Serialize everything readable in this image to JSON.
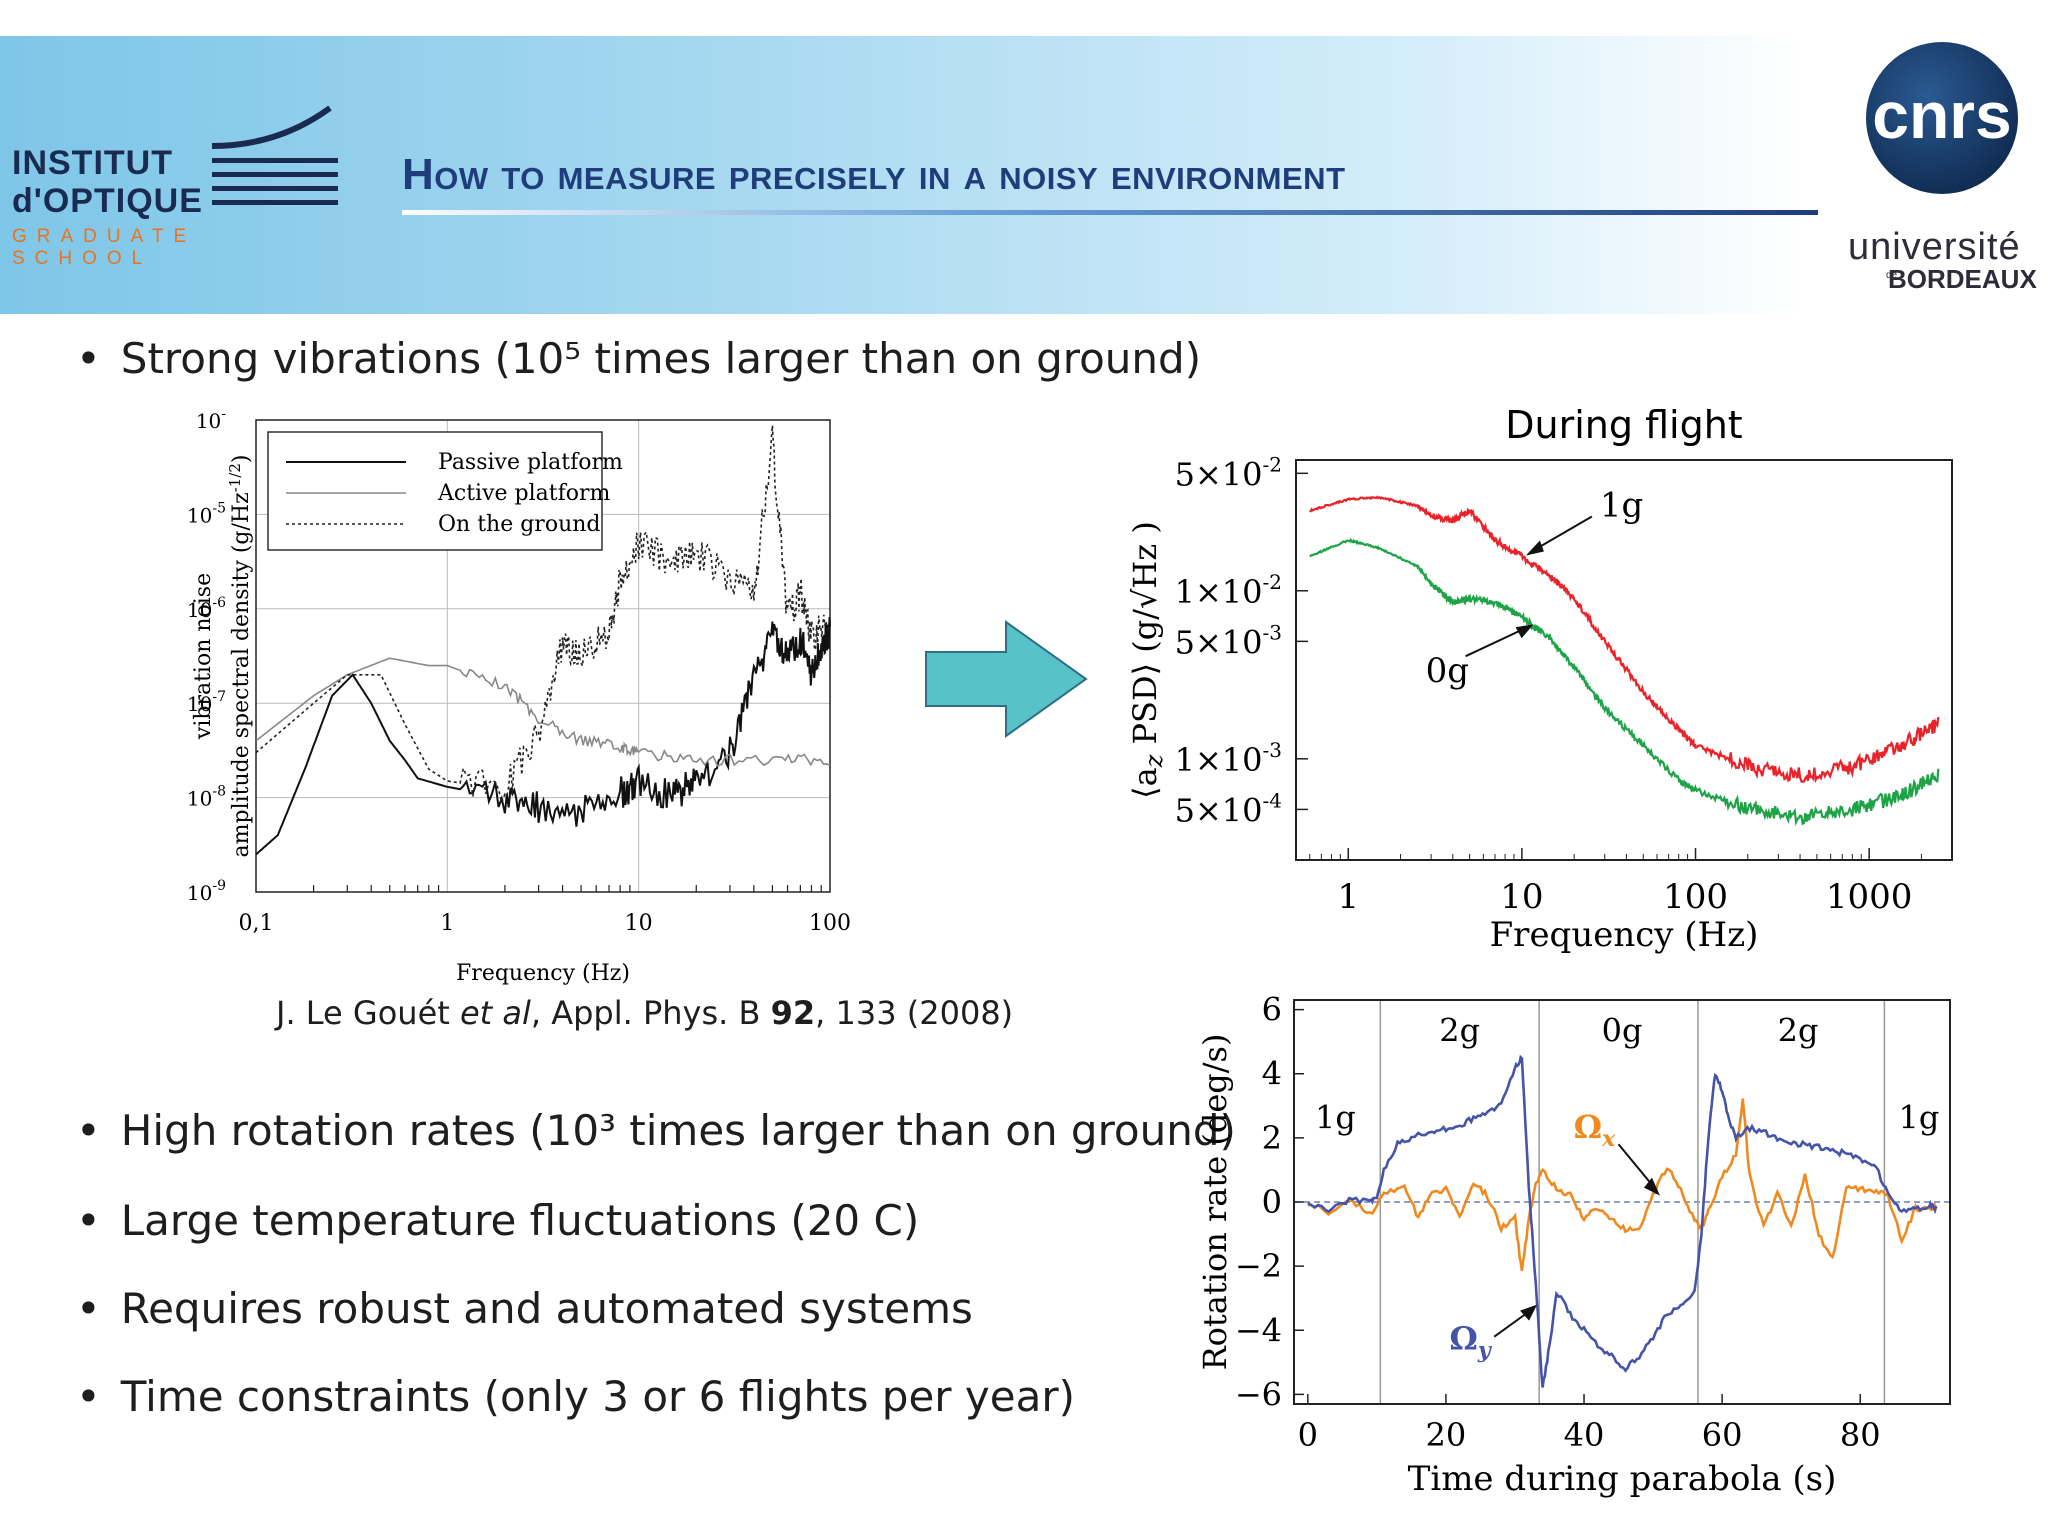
{
  "header": {
    "title": "How to measure precisely in a noisy environment",
    "logo_institut": {
      "line1": "INSTITUT",
      "line2": "d'OPTIQUE",
      "line3": "GRADUATE SCHOOL"
    },
    "logo_cnrs": "cnrs",
    "logo_universite": {
      "line1": "université",
      "line2": "BORDEAUX",
      "prefix": "de"
    }
  },
  "bullets": [
    {
      "text": "Strong vibrations (10⁵ times larger than on ground)"
    },
    {
      "text": "High rotation rates (10³ times larger than on ground)"
    },
    {
      "text": "Large temperature fluctuations (20 C)"
    },
    {
      "text": "Requires robust and automated systems"
    },
    {
      "text": "Time constraints (only 3 or 6 flights per year)"
    }
  ],
  "citation": {
    "authors": "J. Le Gouét ",
    "etal": "et al",
    "journal": ", Appl. Phys. B ",
    "volume": "92",
    "rest": ", 133 (2008)"
  },
  "colors": {
    "arrow": "#57c2c8",
    "red": "#e8232a",
    "green": "#1ea346",
    "orange": "#f08a1e",
    "blue": "#4654a8",
    "title": "#1f3d7a"
  },
  "chart_data": [
    {
      "type": "line",
      "xscale": "log",
      "yscale": "log",
      "xlim": [
        0.1,
        100
      ],
      "ylim": [
        1e-09,
        0.0001
      ],
      "xlabel": "Frequency (Hz)",
      "ylabel": "amplitude spectral density (g/Hz",
      "ylabel_sup": "-1/2",
      "ylabel_close": ")",
      "ylabel2": "vibration noise",
      "xticks": [
        {
          "v": 0.1,
          "label": "0,1"
        },
        {
          "v": 1,
          "label": "1"
        },
        {
          "v": 10,
          "label": "10"
        },
        {
          "v": 100,
          "label": "100"
        }
      ],
      "yticks": [
        {
          "v": -9,
          "label": "-9"
        },
        {
          "v": -8,
          "label": "-8"
        },
        {
          "v": -7,
          "label": "-7"
        },
        {
          "v": -6,
          "label": "-6"
        },
        {
          "v": -5,
          "label": "-5"
        },
        {
          "v": -4,
          "label": "-"
        }
      ],
      "ytick_base": "10",
      "legend_position": "top-left",
      "series": [
        {
          "name": "Passive platform",
          "style": "solid",
          "x": [
            0.1,
            0.13,
            0.18,
            0.25,
            0.32,
            0.4,
            0.5,
            0.6,
            0.7,
            1,
            2,
            3,
            5,
            8,
            10,
            15,
            20,
            30,
            40,
            50,
            60,
            70,
            80,
            90,
            100
          ],
          "y": [
            2.5e-09,
            4e-09,
            2e-08,
            1.2e-07,
            2e-07,
            1e-07,
            4e-08,
            2.5e-08,
            1.6e-08,
            1.3e-08,
            1e-08,
            8e-09,
            7e-09,
            1.1e-08,
            1.5e-08,
            1e-08,
            1.5e-08,
            3e-08,
            2e-07,
            5e-07,
            3e-07,
            5e-07,
            2e-07,
            4e-07,
            6e-07
          ]
        },
        {
          "name": "Active platform",
          "style": "thin",
          "x": [
            0.1,
            0.2,
            0.3,
            0.5,
            0.8,
            1,
            2,
            3,
            5,
            8,
            10,
            20,
            50,
            100
          ],
          "y": [
            4e-08,
            1.2e-07,
            2e-07,
            3e-07,
            2.5e-07,
            2.5e-07,
            1.5e-07,
            7e-08,
            4e-08,
            3.5e-08,
            3e-08,
            2.5e-08,
            2.5e-08,
            2.5e-08
          ]
        },
        {
          "name": "On the ground",
          "style": "dotted",
          "x": [
            0.1,
            0.2,
            0.3,
            0.45,
            0.6,
            0.8,
            1,
            2,
            3,
            4,
            5,
            7,
            8,
            10,
            15,
            20,
            30,
            40,
            50,
            60,
            70,
            80,
            100
          ],
          "y": [
            3e-08,
            1e-07,
            2e-07,
            2e-07,
            6e-08,
            2e-08,
            1.5e-08,
            1.2e-08,
            5e-08,
            4e-07,
            3e-07,
            6e-07,
            2e-06,
            5e-06,
            3e-06,
            4e-06,
            2e-06,
            1.5e-06,
            6e-05,
            8e-07,
            1.5e-06,
            5e-07,
            8e-07
          ]
        }
      ]
    },
    {
      "type": "line",
      "title": "During flight",
      "xscale": "log",
      "yscale": "log",
      "xlim": [
        0.5,
        3000
      ],
      "ylim": [
        0.00025,
        0.06
      ],
      "xlabel": "Frequency (Hz)",
      "ylabel": "⟨a",
      "ylabel_sub": "z",
      "ylabel_rest": " PSD⟩ (g/√Hz )",
      "xticks": [
        {
          "v": 1,
          "label": "1"
        },
        {
          "v": 10,
          "label": "10"
        },
        {
          "v": 100,
          "label": "100"
        },
        {
          "v": 1000,
          "label": "1000"
        }
      ],
      "yticks": [
        {
          "v": 0.05,
          "label": "5×10",
          "exp": "-2"
        },
        {
          "v": 0.01,
          "label": "1×10",
          "exp": "-2"
        },
        {
          "v": 0.005,
          "label": "5×10",
          "exp": "-3"
        },
        {
          "v": 0.001,
          "label": "1×10",
          "exp": "-3"
        },
        {
          "v": 0.0005,
          "label": "5×10",
          "exp": "-4"
        }
      ],
      "series": [
        {
          "name": "1g",
          "color": "#e8232a",
          "x": [
            0.6,
            1,
            1.5,
            2.5,
            3,
            4,
            5,
            7,
            10,
            15,
            20,
            30,
            50,
            80,
            100,
            200,
            400,
            800,
            1500,
            2500
          ],
          "y": [
            0.03,
            0.035,
            0.036,
            0.032,
            0.028,
            0.026,
            0.03,
            0.02,
            0.016,
            0.012,
            0.009,
            0.005,
            0.0025,
            0.0015,
            0.0012,
            0.0009,
            0.0008,
            0.0009,
            0.0012,
            0.0016
          ]
        },
        {
          "name": "0g",
          "color": "#1ea346",
          "x": [
            0.6,
            1,
            1.5,
            2.5,
            3,
            4,
            5,
            7,
            10,
            15,
            20,
            30,
            50,
            80,
            100,
            200,
            400,
            800,
            1500,
            2500
          ],
          "y": [
            0.016,
            0.02,
            0.018,
            0.014,
            0.011,
            0.0085,
            0.009,
            0.0085,
            0.007,
            0.005,
            0.0035,
            0.002,
            0.0012,
            0.00075,
            0.00065,
            0.0005,
            0.00045,
            0.0005,
            0.0006,
            0.0008
          ]
        }
      ],
      "annotations": [
        {
          "label": "1g",
          "target": "1g"
        },
        {
          "label": "0g",
          "target": "0g"
        }
      ]
    },
    {
      "type": "line",
      "xlim": [
        -2,
        93
      ],
      "ylim": [
        -6.3,
        6.3
      ],
      "xlabel": "Time during parabola  (s)",
      "ylabel": "Rotation rate  (deg/s)",
      "xticks": [
        {
          "v": 0,
          "label": "0"
        },
        {
          "v": 20,
          "label": "20"
        },
        {
          "v": 40,
          "label": "40"
        },
        {
          "v": 60,
          "label": "60"
        },
        {
          "v": 80,
          "label": "80"
        }
      ],
      "yticks": [
        {
          "v": 6,
          "label": "6"
        },
        {
          "v": 4,
          "label": "4"
        },
        {
          "v": 2,
          "label": "2"
        },
        {
          "v": 0,
          "label": "0"
        },
        {
          "v": -2,
          "label": "−2"
        },
        {
          "v": -4,
          "label": "−4"
        },
        {
          "v": -6,
          "label": "−6"
        }
      ],
      "phase_boundaries": [
        10.5,
        33.5,
        56.5,
        83.5
      ],
      "phase_labels": [
        {
          "x": 4,
          "y": 2.3,
          "label": "1g"
        },
        {
          "x": 22,
          "y": 5,
          "label": "2g"
        },
        {
          "x": 45.5,
          "y": 5,
          "label": "0g"
        },
        {
          "x": 71,
          "y": 5,
          "label": "2g"
        },
        {
          "x": 88.5,
          "y": 2.3,
          "label": "1g"
        }
      ],
      "series": [
        {
          "name": "Ωx",
          "sym": "Ω",
          "sub": "x",
          "color": "#f08a1e",
          "x": [
            0,
            3,
            6,
            9,
            11,
            14,
            16,
            18,
            20,
            22,
            24,
            26,
            28,
            30,
            31,
            32,
            33,
            34,
            36,
            38,
            40,
            42,
            44,
            46,
            48,
            50,
            52,
            54,
            56,
            57,
            58,
            60,
            62,
            63,
            64,
            66,
            68,
            70,
            72,
            74,
            76,
            78,
            80,
            82,
            84,
            86,
            88,
            90,
            91
          ],
          "y": [
            0,
            -0.3,
            0.1,
            -0.4,
            0.2,
            0.5,
            -0.5,
            0.3,
            0.4,
            -0.5,
            0.6,
            0.2,
            -0.8,
            -0.5,
            -2.2,
            -0.5,
            0.5,
            1.0,
            0.4,
            0.2,
            -0.5,
            -0.2,
            -0.5,
            -0.9,
            -0.8,
            0.2,
            1.1,
            0.4,
            -0.6,
            -0.8,
            -0.3,
            0.8,
            1.5,
            3.2,
            0.8,
            -0.8,
            0.3,
            -0.8,
            0.9,
            -1.0,
            -1.8,
            0.5,
            0.4,
            0.3,
            0.2,
            -1.2,
            -0.2,
            -0.2,
            -0.2
          ]
        },
        {
          "name": "Ωy",
          "sym": "Ω",
          "sub": "y",
          "color": "#4654a8",
          "x": [
            0,
            3,
            6,
            9,
            10,
            11,
            13,
            15,
            18,
            20,
            22,
            24,
            26,
            28,
            30,
            31,
            32,
            33,
            34,
            35,
            36,
            38,
            40,
            42,
            44,
            46,
            48,
            50,
            52,
            54,
            56,
            57,
            58,
            59,
            60,
            61,
            62,
            64,
            66,
            68,
            70,
            72,
            74,
            76,
            78,
            80,
            82,
            84,
            86,
            88,
            90,
            91
          ],
          "y": [
            0,
            -0.3,
            0.1,
            0,
            0.2,
            1.0,
            1.8,
            2.0,
            2.2,
            2.3,
            2.4,
            2.6,
            2.8,
            3.0,
            4.2,
            4.5,
            0.5,
            -2.5,
            -5.8,
            -4.5,
            -2.8,
            -3.5,
            -4.0,
            -4.5,
            -4.8,
            -5.2,
            -4.8,
            -4.2,
            -3.5,
            -3.2,
            -2.8,
            -1.0,
            2.0,
            4.0,
            3.5,
            2.5,
            2.0,
            2.3,
            2.2,
            2.0,
            1.8,
            1.8,
            1.7,
            1.6,
            1.5,
            1.3,
            1.2,
            0.3,
            -0.3,
            -0.2,
            -0.1,
            -0.2
          ]
        }
      ]
    }
  ]
}
